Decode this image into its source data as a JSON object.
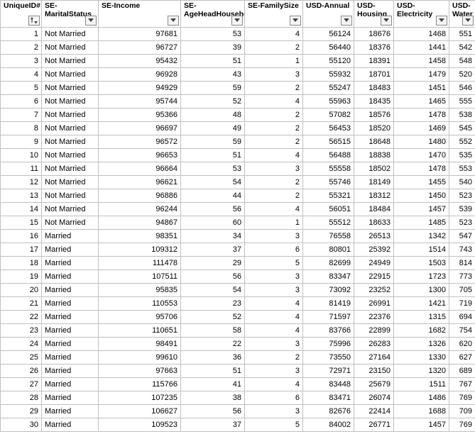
{
  "table": {
    "columns": [
      {
        "label": "UniqueID#",
        "sort": true,
        "align": "right"
      },
      {
        "label": "SE-MaritalStatus",
        "sort": false,
        "align": "left"
      },
      {
        "label": "SE-Income",
        "sort": false,
        "align": "right"
      },
      {
        "label": "SE-AgeHeadHousehold",
        "sort": false,
        "align": "right"
      },
      {
        "label": "SE-FamilySize",
        "sort": false,
        "align": "right"
      },
      {
        "label": "USD-Annual",
        "sort": false,
        "align": "right"
      },
      {
        "label": "USD-Housing",
        "sort": false,
        "align": "right"
      },
      {
        "label": "USD-Electricity",
        "sort": false,
        "align": "right"
      },
      {
        "label": "USD-Water",
        "sort": false,
        "align": "right"
      }
    ],
    "rows": [
      [
        "1",
        "Not Married",
        "97681",
        "53",
        "4",
        "56124",
        "18676",
        "1468",
        "551"
      ],
      [
        "2",
        "Not Married",
        "96727",
        "39",
        "2",
        "56440",
        "18376",
        "1441",
        "542"
      ],
      [
        "3",
        "Not Married",
        "95432",
        "51",
        "1",
        "55120",
        "18391",
        "1458",
        "548"
      ],
      [
        "4",
        "Not Married",
        "96928",
        "43",
        "3",
        "55932",
        "18701",
        "1479",
        "520"
      ],
      [
        "5",
        "Not Married",
        "94929",
        "59",
        "2",
        "55247",
        "18483",
        "1451",
        "546"
      ],
      [
        "6",
        "Not Married",
        "95744",
        "52",
        "4",
        "55963",
        "18435",
        "1465",
        "555"
      ],
      [
        "7",
        "Not Married",
        "95366",
        "48",
        "2",
        "57082",
        "18576",
        "1478",
        "538"
      ],
      [
        "8",
        "Not Married",
        "96697",
        "49",
        "2",
        "56453",
        "18520",
        "1469",
        "545"
      ],
      [
        "9",
        "Not Married",
        "96572",
        "59",
        "2",
        "56515",
        "18648",
        "1480",
        "552"
      ],
      [
        "10",
        "Not Married",
        "96653",
        "51",
        "4",
        "56488",
        "18838",
        "1470",
        "535"
      ],
      [
        "11",
        "Not Married",
        "96664",
        "53",
        "3",
        "55558",
        "18502",
        "1478",
        "553"
      ],
      [
        "12",
        "Not Married",
        "96621",
        "54",
        "2",
        "55746",
        "18149",
        "1455",
        "540"
      ],
      [
        "13",
        "Not Married",
        "96886",
        "44",
        "2",
        "55321",
        "18312",
        "1450",
        "523"
      ],
      [
        "14",
        "Not Married",
        "96244",
        "56",
        "4",
        "56051",
        "18484",
        "1457",
        "539"
      ],
      [
        "15",
        "Not Married",
        "94867",
        "60",
        "1",
        "55512",
        "18633",
        "1485",
        "523"
      ],
      [
        "16",
        "Married",
        "98351",
        "34",
        "3",
        "76558",
        "26513",
        "1342",
        "547"
      ],
      [
        "17",
        "Married",
        "109312",
        "37",
        "6",
        "80801",
        "25392",
        "1514",
        "743"
      ],
      [
        "18",
        "Married",
        "111478",
        "29",
        "5",
        "82699",
        "24949",
        "1503",
        "814"
      ],
      [
        "19",
        "Married",
        "107511",
        "56",
        "3",
        "83347",
        "22915",
        "1723",
        "773"
      ],
      [
        "20",
        "Married",
        "95835",
        "54",
        "3",
        "73092",
        "23252",
        "1300",
        "705"
      ],
      [
        "21",
        "Married",
        "110553",
        "23",
        "4",
        "81419",
        "26991",
        "1421",
        "719"
      ],
      [
        "22",
        "Married",
        "95706",
        "52",
        "4",
        "71597",
        "22376",
        "1315",
        "694"
      ],
      [
        "23",
        "Married",
        "110651",
        "58",
        "4",
        "83766",
        "22899",
        "1682",
        "754"
      ],
      [
        "24",
        "Married",
        "98491",
        "22",
        "3",
        "75996",
        "26283",
        "1326",
        "620"
      ],
      [
        "25",
        "Married",
        "99610",
        "36",
        "2",
        "73550",
        "27164",
        "1330",
        "627"
      ],
      [
        "26",
        "Married",
        "97663",
        "51",
        "3",
        "72971",
        "23150",
        "1320",
        "689"
      ],
      [
        "27",
        "Married",
        "115766",
        "41",
        "4",
        "83448",
        "25679",
        "1511",
        "767"
      ],
      [
        "28",
        "Married",
        "107235",
        "38",
        "6",
        "83471",
        "26074",
        "1486",
        "769"
      ],
      [
        "29",
        "Married",
        "106627",
        "56",
        "3",
        "82676",
        "22414",
        "1688",
        "709"
      ],
      [
        "30",
        "Married",
        "109523",
        "37",
        "5",
        "84002",
        "26771",
        "1457",
        "769"
      ]
    ]
  }
}
